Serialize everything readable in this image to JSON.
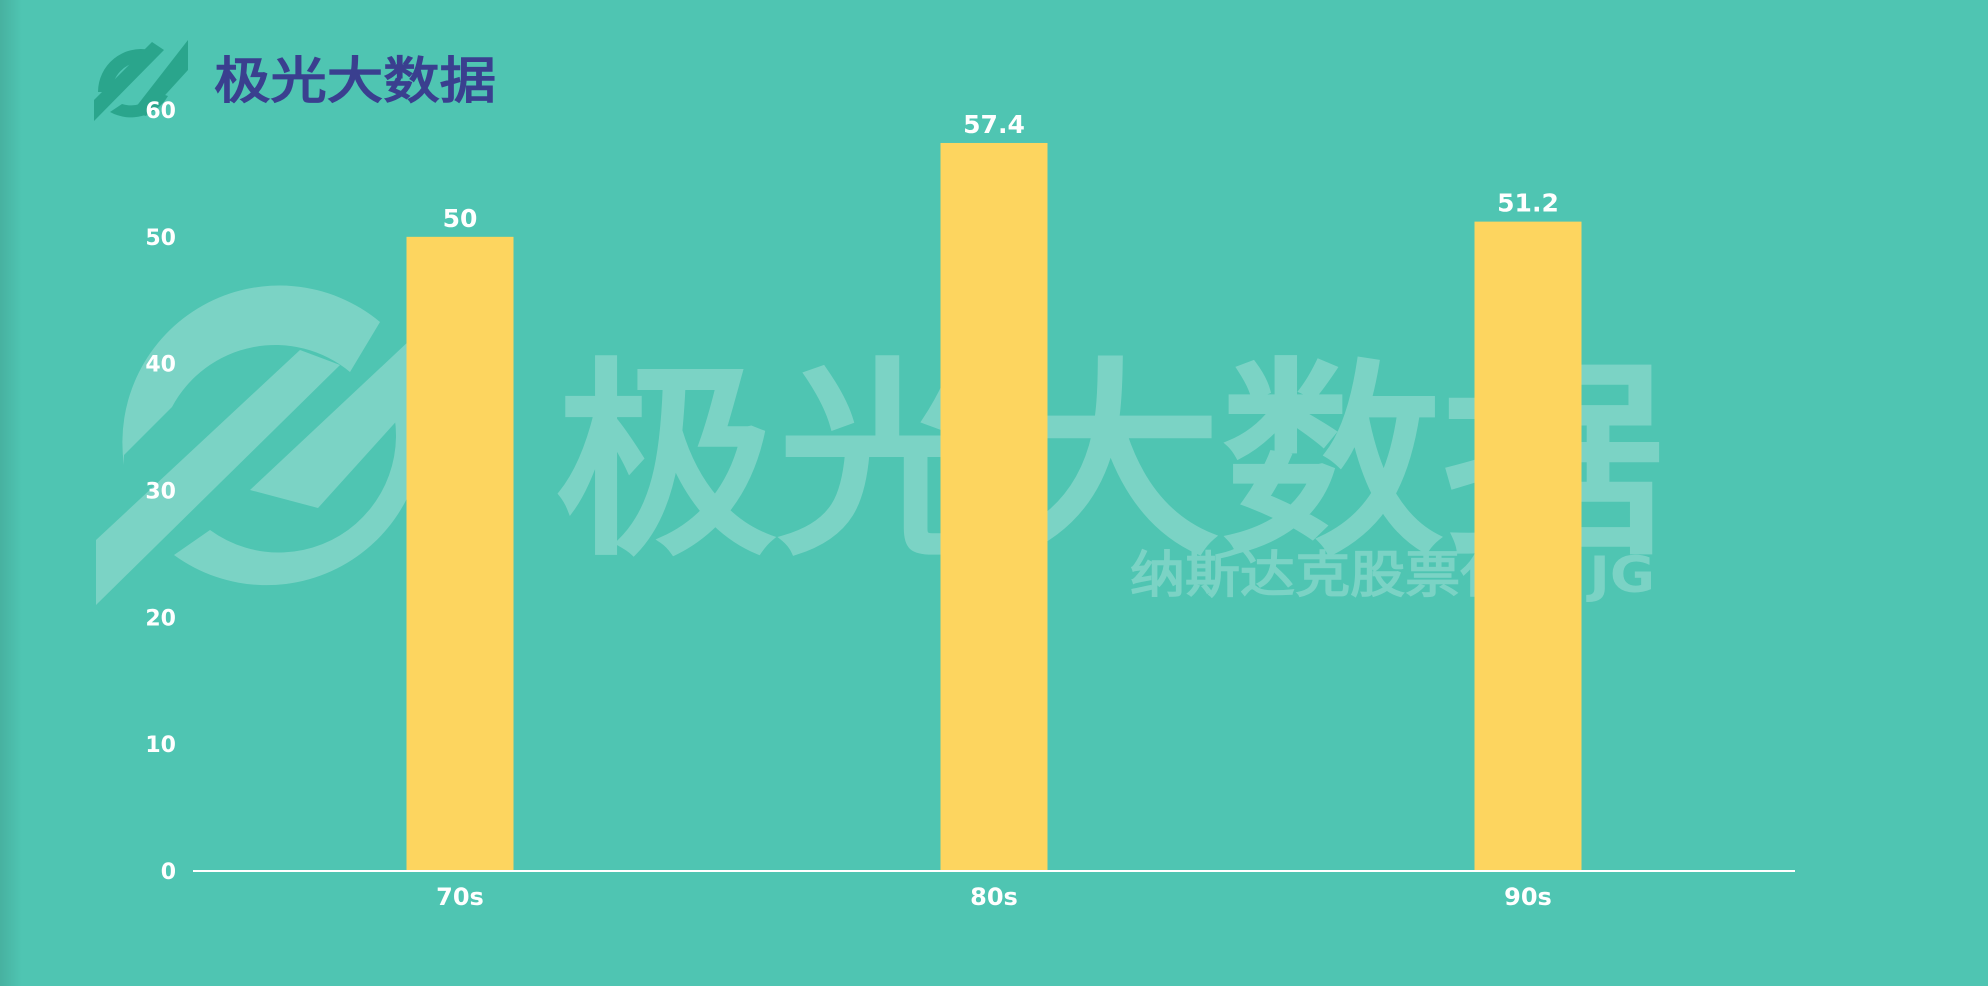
{
  "brand": {
    "name": "极光大数据",
    "logo_icon": "jiguang-logo-icon",
    "color": "#3a3f8f",
    "accent": "#2aa58c"
  },
  "watermark": {
    "name": "极光大数据",
    "subtitle": "纳斯达克股票代码 JG"
  },
  "colors": {
    "background": "#4fc5b2",
    "bar": "#fdd55f",
    "axis": "#ffffff",
    "text": "#ffffff"
  },
  "chart_data": {
    "type": "bar",
    "categories": [
      "70s",
      "80s",
      "90s"
    ],
    "values": [
      50,
      57.4,
      51.2
    ],
    "value_labels": [
      "50",
      "57.4",
      "51.2"
    ],
    "yticks": [
      0,
      10,
      20,
      30,
      40,
      50,
      60
    ],
    "ylim": [
      0,
      60
    ],
    "grid": false,
    "legend": "none"
  }
}
